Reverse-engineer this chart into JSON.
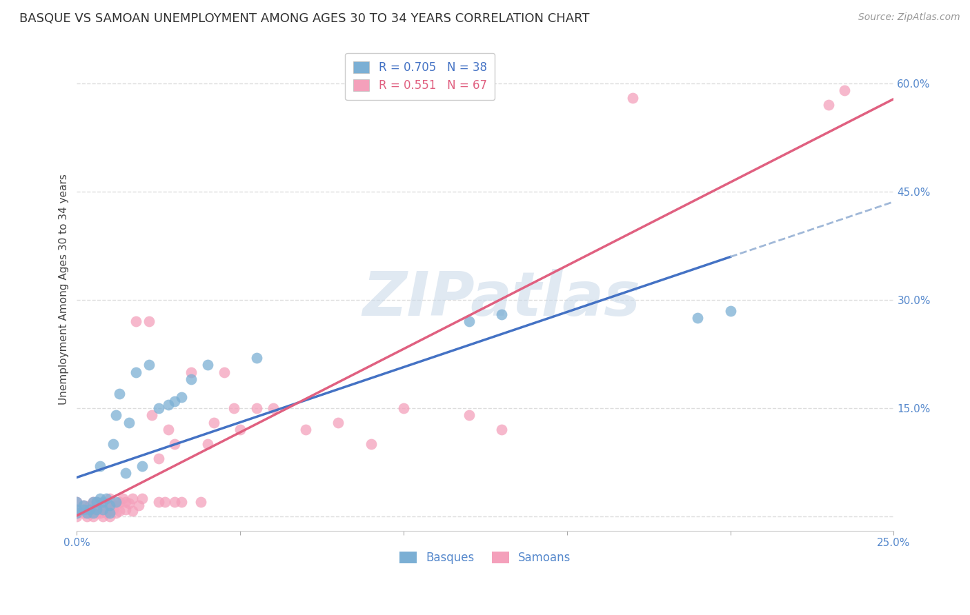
{
  "title": "BASQUE VS SAMOAN UNEMPLOYMENT AMONG AGES 30 TO 34 YEARS CORRELATION CHART",
  "source": "Source: ZipAtlas.com",
  "ylabel": "Unemployment Among Ages 30 to 34 years",
  "xlim": [
    0.0,
    0.25
  ],
  "ylim": [
    -0.02,
    0.65
  ],
  "xticks": [
    0.0,
    0.05,
    0.1,
    0.15,
    0.2,
    0.25
  ],
  "yticks": [
    0.0,
    0.15,
    0.3,
    0.45,
    0.6
  ],
  "watermark_text": "ZIPatlas",
  "basque_color": "#7bafd4",
  "samoan_color": "#f4a0bb",
  "line_basque_color": "#4472c4",
  "line_samoan_color": "#e06080",
  "line_dashed_color": "#a0b8d8",
  "basque_R": 0.705,
  "basque_N": 38,
  "samoan_R": 0.551,
  "samoan_N": 67,
  "basque_x": [
    0.0,
    0.0,
    0.0,
    0.002,
    0.002,
    0.003,
    0.004,
    0.005,
    0.005,
    0.006,
    0.006,
    0.007,
    0.007,
    0.008,
    0.008,
    0.009,
    0.01,
    0.01,
    0.011,
    0.012,
    0.012,
    0.013,
    0.015,
    0.016,
    0.018,
    0.02,
    0.022,
    0.025,
    0.028,
    0.03,
    0.032,
    0.035,
    0.04,
    0.055,
    0.12,
    0.13,
    0.19,
    0.2
  ],
  "basque_y": [
    0.005,
    0.01,
    0.02,
    0.01,
    0.015,
    0.005,
    0.01,
    0.005,
    0.02,
    0.01,
    0.02,
    0.025,
    0.07,
    0.01,
    0.02,
    0.025,
    0.005,
    0.015,
    0.1,
    0.14,
    0.02,
    0.17,
    0.06,
    0.13,
    0.2,
    0.07,
    0.21,
    0.15,
    0.155,
    0.16,
    0.165,
    0.19,
    0.21,
    0.22,
    0.27,
    0.28,
    0.275,
    0.285
  ],
  "samoan_x": [
    0.0,
    0.0,
    0.0,
    0.0,
    0.002,
    0.002,
    0.003,
    0.003,
    0.004,
    0.004,
    0.005,
    0.005,
    0.005,
    0.006,
    0.006,
    0.006,
    0.007,
    0.007,
    0.008,
    0.008,
    0.009,
    0.009,
    0.01,
    0.01,
    0.01,
    0.01,
    0.011,
    0.012,
    0.012,
    0.013,
    0.013,
    0.014,
    0.015,
    0.015,
    0.016,
    0.017,
    0.017,
    0.018,
    0.019,
    0.02,
    0.022,
    0.023,
    0.025,
    0.025,
    0.027,
    0.028,
    0.03,
    0.03,
    0.032,
    0.035,
    0.038,
    0.04,
    0.042,
    0.045,
    0.048,
    0.05,
    0.055,
    0.06,
    0.07,
    0.08,
    0.09,
    0.1,
    0.12,
    0.13,
    0.17,
    0.23,
    0.235
  ],
  "samoan_y": [
    0.0,
    0.005,
    0.01,
    0.02,
    0.005,
    0.015,
    0.0,
    0.01,
    0.005,
    0.015,
    0.0,
    0.008,
    0.02,
    0.005,
    0.01,
    0.02,
    0.005,
    0.012,
    0.0,
    0.01,
    0.005,
    0.018,
    0.0,
    0.008,
    0.015,
    0.025,
    0.01,
    0.005,
    0.015,
    0.008,
    0.02,
    0.025,
    0.01,
    0.02,
    0.018,
    0.008,
    0.025,
    0.27,
    0.015,
    0.025,
    0.27,
    0.14,
    0.02,
    0.08,
    0.02,
    0.12,
    0.02,
    0.1,
    0.02,
    0.2,
    0.02,
    0.1,
    0.13,
    0.2,
    0.15,
    0.12,
    0.15,
    0.15,
    0.12,
    0.13,
    0.1,
    0.15,
    0.14,
    0.12,
    0.58,
    0.57,
    0.59
  ],
  "background_color": "#ffffff",
  "grid_color": "#dddddd",
  "title_fontsize": 13,
  "label_fontsize": 11,
  "tick_fontsize": 11,
  "legend_fontsize": 12
}
